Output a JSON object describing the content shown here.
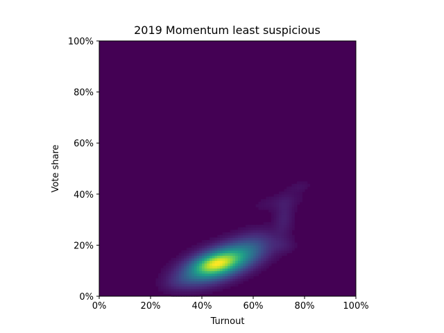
{
  "chart_data": {
    "type": "heatmap",
    "title": "2019 Momentum least suspicious",
    "xlabel": "Turnout",
    "ylabel": "Vote share",
    "xlim": [
      0,
      100
    ],
    "ylim": [
      0,
      100
    ],
    "unit": "%",
    "x_ticks": [
      "0%",
      "20%",
      "40%",
      "60%",
      "80%",
      "100%"
    ],
    "y_ticks": [
      "0%",
      "20%",
      "40%",
      "60%",
      "80%",
      "100%"
    ],
    "x_tick_values": [
      0,
      20,
      40,
      60,
      80,
      100
    ],
    "y_tick_values": [
      0,
      20,
      40,
      60,
      80,
      100
    ],
    "grid": false,
    "legend": "none",
    "colormap": "viridis",
    "background_color": "#440154",
    "colormap_stops": [
      "#440154",
      "#482878",
      "#3e4989",
      "#31688e",
      "#26828e",
      "#1f9e89",
      "#35b779",
      "#6ece58",
      "#b5de2b",
      "#fde725"
    ],
    "density_components": [
      {
        "turnout": 47,
        "vote_share": 13,
        "sd_turnout": 8.5,
        "sd_vote_share": 4.5,
        "corr": 0.55,
        "weight": 1.0
      },
      {
        "turnout": 45,
        "vote_share": 13,
        "sd_turnout": 5,
        "sd_vote_share": 2.5,
        "corr": 0.4,
        "weight": 0.35
      },
      {
        "turnout": 60,
        "vote_share": 20,
        "sd_turnout": 6,
        "sd_vote_share": 4,
        "corr": 0.3,
        "weight": 0.12
      },
      {
        "turnout": 72,
        "vote_share": 31,
        "sd_turnout": 2.5,
        "sd_vote_share": 5,
        "corr": 0.2,
        "weight": 0.07
      },
      {
        "turnout": 70,
        "vote_share": 37,
        "sd_turnout": 7,
        "sd_vote_share": 2.5,
        "corr": 0.5,
        "weight": 0.035
      },
      {
        "turnout": 78,
        "vote_share": 43,
        "sd_turnout": 3,
        "sd_vote_share": 1.5,
        "corr": 0.3,
        "weight": 0.03
      },
      {
        "turnout": 72,
        "vote_share": 20,
        "sd_turnout": 3,
        "sd_vote_share": 2,
        "corr": 0.0,
        "weight": 0.04
      },
      {
        "turnout": 32,
        "vote_share": 6,
        "sd_turnout": 4,
        "sd_vote_share": 2,
        "corr": 0.3,
        "weight": 0.05
      }
    ]
  }
}
